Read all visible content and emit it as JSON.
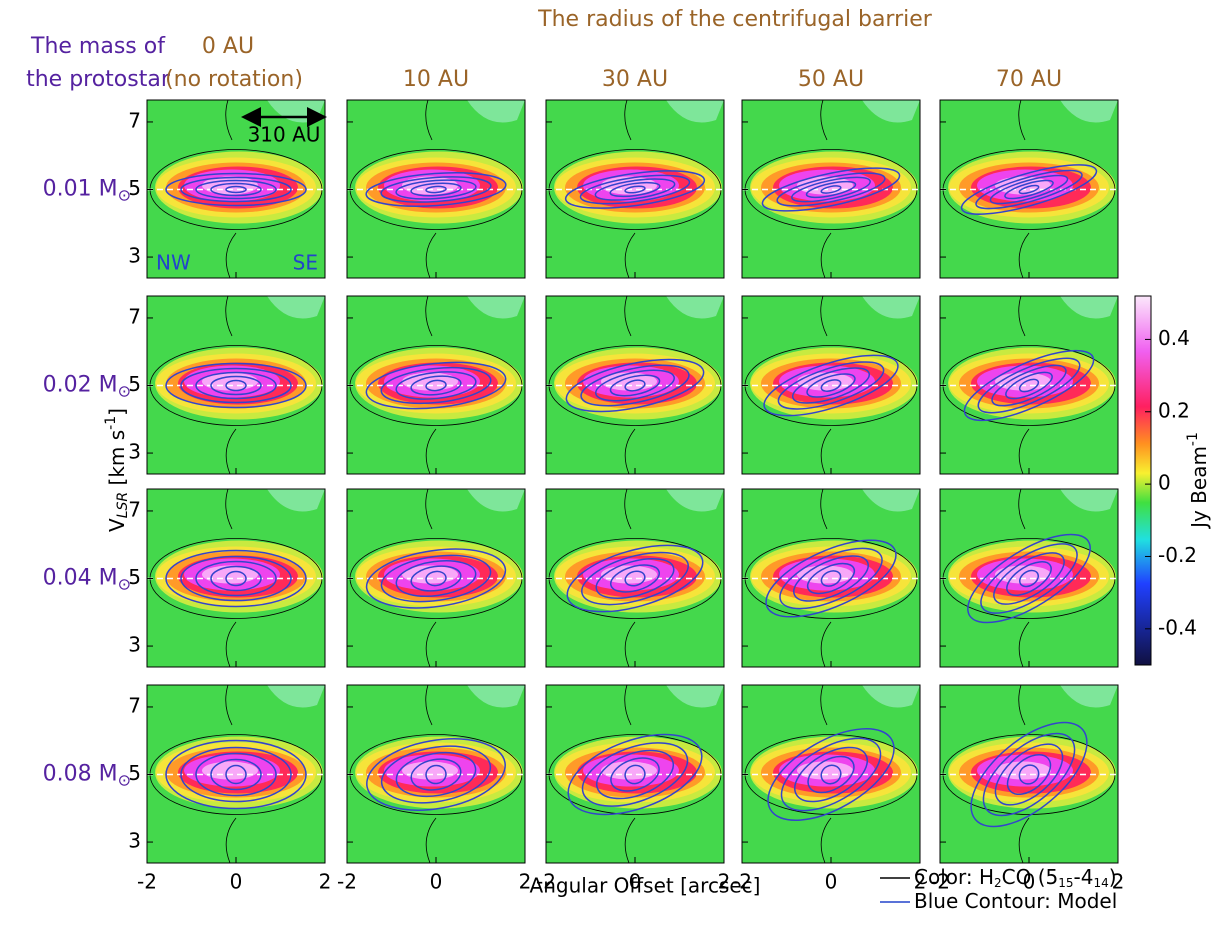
{
  "title": "The radius of the centrifugal barrier",
  "row_header": [
    "The mass of",
    "the protostar"
  ],
  "columns": [
    {
      "label": "0 AU",
      "note": "(no rotation)"
    },
    {
      "label": "10 AU"
    },
    {
      "label": "30 AU"
    },
    {
      "label": "50 AU"
    },
    {
      "label": "70 AU"
    }
  ],
  "rows": [
    "0.01",
    "0.02",
    "0.04",
    "0.08"
  ],
  "mass_unit": "M",
  "mass_unit_sub": "⊙",
  "y_axis": {
    "text": "V",
    "sub": "LSR",
    "rest": " [km s",
    "sup": "-1",
    "end": "]"
  },
  "x_axis": "Angular Offset [arcsec]",
  "xlim": [
    -2,
    2
  ],
  "ylim": [
    2.38,
    7.65
  ],
  "xticks": [
    -2,
    0,
    2
  ],
  "yticks": [
    7,
    5,
    3
  ],
  "colorbar": {
    "label": "Jy Beam",
    "sup": "-1",
    "lim": [
      -0.5,
      0.52
    ],
    "ticks": [
      0.4,
      0.2,
      0,
      -0.2,
      -0.4
    ]
  },
  "annotations": {
    "scale": "310 AU",
    "left": "NW",
    "right": "SE"
  },
  "legend": [
    {
      "color": "#000000",
      "parts": [
        {
          "text": "Color: H"
        },
        {
          "text": "2",
          "sub": true
        },
        {
          "text": "CO (5"
        },
        {
          "text": "15",
          "sub": true
        },
        {
          "text": "-4"
        },
        {
          "text": "14",
          "sub": true
        },
        {
          "text": ")"
        }
      ]
    },
    {
      "color": "#2244cc",
      "parts": [
        {
          "text": "Blue Contour: Model"
        }
      ]
    }
  ]
}
